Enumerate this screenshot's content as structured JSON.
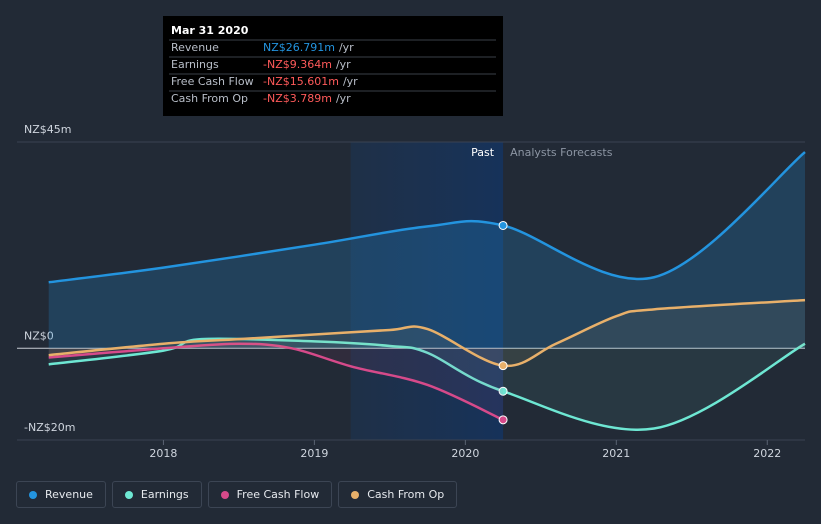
{
  "chart_data": {
    "type": "line",
    "ylim": [
      -20,
      45
    ],
    "yticks": [
      {
        "value": 45,
        "label": "NZ$45m"
      },
      {
        "value": 0,
        "label": "NZ$0"
      },
      {
        "value": -20,
        "label": "-NZ$20m"
      }
    ],
    "xlim": [
      2017.03,
      2022.25
    ],
    "xticks": [
      2018,
      2019,
      2020,
      2021,
      2022
    ],
    "past_range": [
      2019.24,
      2020.25
    ],
    "past_label": "Past",
    "forecast_label": "Analysts Forecasts",
    "series": [
      {
        "name": "Revenue",
        "color": "#2394df",
        "x": [
          2017.24,
          2018,
          2019,
          2019.75,
          2020.25,
          2021.25,
          2022.25
        ],
        "values": [
          14.4,
          17.6,
          22.6,
          26.6,
          26.791,
          15.5,
          42.8
        ]
      },
      {
        "name": "Earnings",
        "color": "#6ee7d3",
        "x": [
          2017.24,
          2018,
          2018.25,
          2019,
          2019.5,
          2019.75,
          2020.25,
          2021.25,
          2022.25
        ],
        "values": [
          -3.5,
          -0.5,
          2,
          1.5,
          0.5,
          -1,
          -9.364,
          -17.5,
          1
        ]
      },
      {
        "name": "Free Cash Flow",
        "color": "#d64a8a",
        "x": [
          2017.24,
          2018,
          2018.5,
          2018.85,
          2019.25,
          2019.75,
          2020.25
        ],
        "values": [
          -2,
          0,
          1,
          0,
          -4,
          -8,
          -15.601
        ]
      },
      {
        "name": "Cash From Op",
        "color": "#e8b06a",
        "x": [
          2017.24,
          2018,
          2018.5,
          2019,
          2019.5,
          2019.75,
          2020.25,
          2020.6,
          2021,
          2021.25,
          2022.25
        ],
        "values": [
          -1.5,
          1,
          2,
          3,
          4,
          4.2,
          -3.789,
          1,
          7,
          8.5,
          10.5
        ]
      }
    ],
    "tooltip": {
      "title": "Mar 31 2020",
      "rows": [
        {
          "label": "Revenue",
          "value": "NZ$26.791m",
          "unit": "/yr"
        },
        {
          "label": "Earnings",
          "value": "-NZ$9.364m",
          "unit": "/yr"
        },
        {
          "label": "Free Cash Flow",
          "value": "-NZ$15.601m",
          "unit": "/yr"
        },
        {
          "label": "Cash From Op",
          "value": "-NZ$3.789m",
          "unit": "/yr"
        }
      ]
    }
  }
}
